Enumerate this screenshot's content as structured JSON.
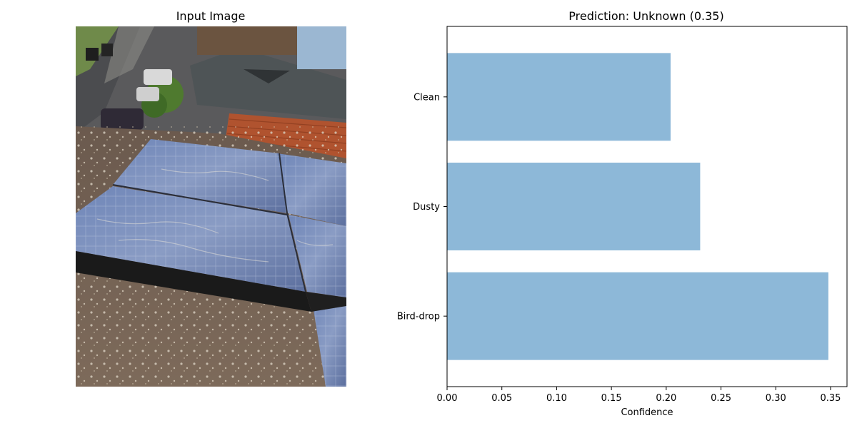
{
  "left_panel": {
    "title": "Input Image",
    "image_description_icon": "solar-panel-rooftop-photo"
  },
  "right_panel": {
    "title": "Prediction: Unknown (0.35)"
  },
  "chart_data": {
    "type": "bar",
    "orientation": "horizontal",
    "title": "Prediction: Unknown (0.35)",
    "categories": [
      "Bird-drop",
      "Dusty",
      "Clean"
    ],
    "values": [
      0.348,
      0.231,
      0.204
    ],
    "xlabel": "Confidence",
    "ylabel": "",
    "xlim": [
      0,
      0.365
    ],
    "xticks": [
      "0.00",
      "0.05",
      "0.10",
      "0.15",
      "0.20",
      "0.25",
      "0.30",
      "0.35"
    ],
    "bar_color": "#8db8d8",
    "grid": false,
    "legend": "none"
  }
}
